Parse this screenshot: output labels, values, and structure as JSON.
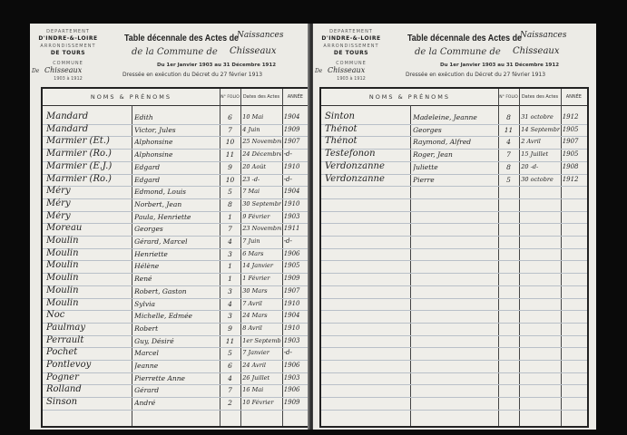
{
  "header": {
    "department_label": "DEPARTEMENT",
    "department": "D'INDRE-&-LOIRE",
    "arrondissement_label": "ARRONDISSEMENT",
    "arrondissement": "DE TOURS",
    "commune_label": "COMMUNE",
    "commune_prefix": "De",
    "commune_handwritten": "Chisseaux",
    "years": "1903 à 1912",
    "title": "Table décennale des Actes de",
    "act_type_handwritten": "Naissances",
    "commune_line": "de la Commune de",
    "period": "Du 1er Janvier 1903 au 31 Décembre 1912",
    "decree": "Dressée en exécution du Décret du 27 février 1913"
  },
  "columns": {
    "names": "NOMS & PRÉNOMS",
    "folio": "N° FOLIO",
    "dates": "Dates des Actes",
    "year": "ANNÉE"
  },
  "left_rows": [
    [
      "Mandard",
      "Edith",
      "6",
      "10 Mai",
      "1904"
    ],
    [
      "Mandard",
      "Victor, Jules",
      "7",
      "4 Juin",
      "1909"
    ],
    [
      "Marmier (Et.)",
      "Alphonsine",
      "10",
      "25 Novembre",
      "1907"
    ],
    [
      "Marmier (Ro.)",
      "Alphonsine",
      "11",
      "24 Décembre",
      "-d-"
    ],
    [
      "Marmier (E.J.)",
      "Edgard",
      "9",
      "20 Août",
      "1910"
    ],
    [
      "Marmier (Ro.)",
      "Edgard",
      "10",
      "23 -d-",
      "-d-"
    ],
    [
      "Méry",
      "Edmond, Louis",
      "5",
      "7 Mai",
      "1904"
    ],
    [
      "Méry",
      "Norbert, Jean",
      "8",
      "30 Septembre",
      "1910"
    ],
    [
      "Méry",
      "Paula, Henriette",
      "1",
      "9 Février",
      "1903"
    ],
    [
      "Moreau",
      "Georges",
      "7",
      "23 Novembre",
      "1911"
    ],
    [
      "Moulin",
      "Gérard, Marcel",
      "4",
      "7 Juin",
      "-d-"
    ],
    [
      "Moulin",
      "Henriette",
      "3",
      "6 Mars",
      "1906"
    ],
    [
      "Moulin",
      "Hélène",
      "1",
      "14 Janvier",
      "1905"
    ],
    [
      "Moulin",
      "René",
      "1",
      "1 Février",
      "1909"
    ],
    [
      "Moulin",
      "Robert, Gaston",
      "3",
      "30 Mars",
      "1907"
    ],
    [
      "Moulin",
      "Sylvia",
      "4",
      "7 Avril",
      "1910"
    ],
    [
      "Noc",
      "Michelle, Edmée",
      "3",
      "24 Mars",
      "1904"
    ],
    [
      "Paulmay",
      "Robert",
      "9",
      "8 Avril",
      "1910"
    ],
    [
      "Perrault",
      "Guy, Désiré",
      "11",
      "1er Septembre",
      "1903"
    ],
    [
      "Pochet",
      "Marcel",
      "5",
      "7 Janvier",
      "-d-"
    ],
    [
      "Pontlevoy",
      "Jeanne",
      "6",
      "24 Avril",
      "1906"
    ],
    [
      "Pogner",
      "Pierrette Anne",
      "4",
      "26 Juillet",
      "1903"
    ],
    [
      "Rolland",
      "Gérard",
      "7",
      "16 Mai",
      "1906"
    ],
    [
      "Sinson",
      "André",
      "2",
      "10 Février",
      "1909"
    ]
  ],
  "right_rows": [
    [
      "Sinton",
      "Madeleine, Jeanne",
      "8",
      "31 octobre",
      "1912"
    ],
    [
      "Thénot",
      "Georges",
      "11",
      "14 Septembre",
      "1905"
    ],
    [
      "Thénot",
      "Raymond, Alfred",
      "4",
      "2 Avril",
      "1907"
    ],
    [
      "Testefonon",
      "Roger, Jean",
      "7",
      "15 Juillet",
      "1905"
    ],
    [
      "Verdonzanne",
      "Juliette",
      "8",
      "20 -d-",
      "1908"
    ],
    [
      "Verdonzanne",
      "Pierre",
      "5",
      "30 octobre",
      "1912"
    ]
  ]
}
